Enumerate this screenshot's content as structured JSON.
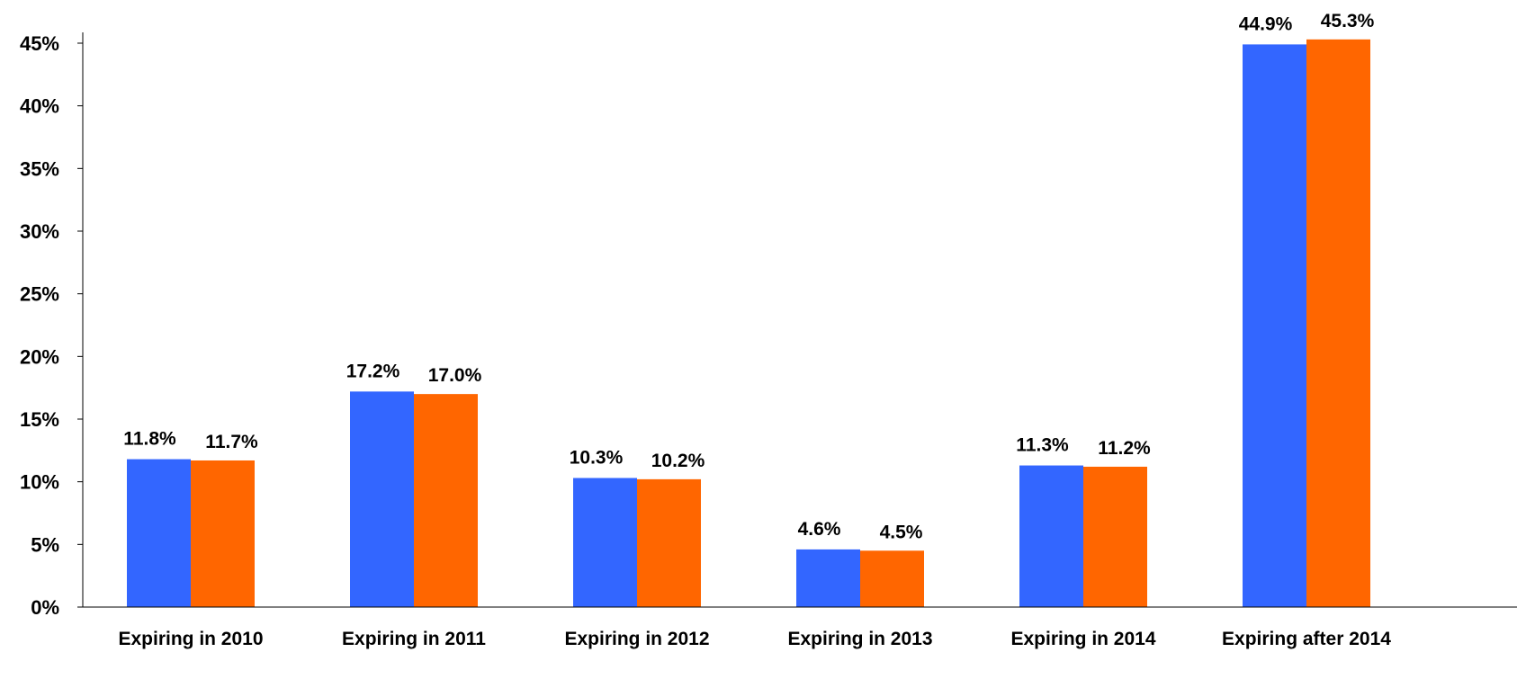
{
  "chart_data": {
    "type": "bar",
    "categories": [
      "Expiring in 2010",
      "Expiring in 2011",
      "Expiring in 2012",
      "Expiring in 2013",
      "Expiring in 2014",
      "Expiring after 2014"
    ],
    "series": [
      {
        "values": [
          11.8,
          17.2,
          10.3,
          4.6,
          11.3,
          44.9
        ],
        "labels": [
          "11.8%",
          "17.2%",
          "10.3%",
          "4.6%",
          "11.3%",
          "44.9%"
        ],
        "color": "#3366FF"
      },
      {
        "values": [
          11.7,
          17.0,
          10.2,
          4.5,
          11.2,
          45.3
        ],
        "labels": [
          "11.7%",
          "17.0%",
          "10.2%",
          "4.5%",
          "11.2%",
          "45.3%"
        ],
        "color": "#FF6600"
      }
    ],
    "ylim": [
      0,
      45
    ],
    "yticks": [
      0,
      5,
      10,
      15,
      20,
      25,
      30,
      35,
      40,
      45
    ],
    "ytick_labels": [
      "0%",
      "5%",
      "10%",
      "15%",
      "20%",
      "25%",
      "30%",
      "35%",
      "40%",
      "45%"
    ],
    "grid": false,
    "legend": "none"
  }
}
